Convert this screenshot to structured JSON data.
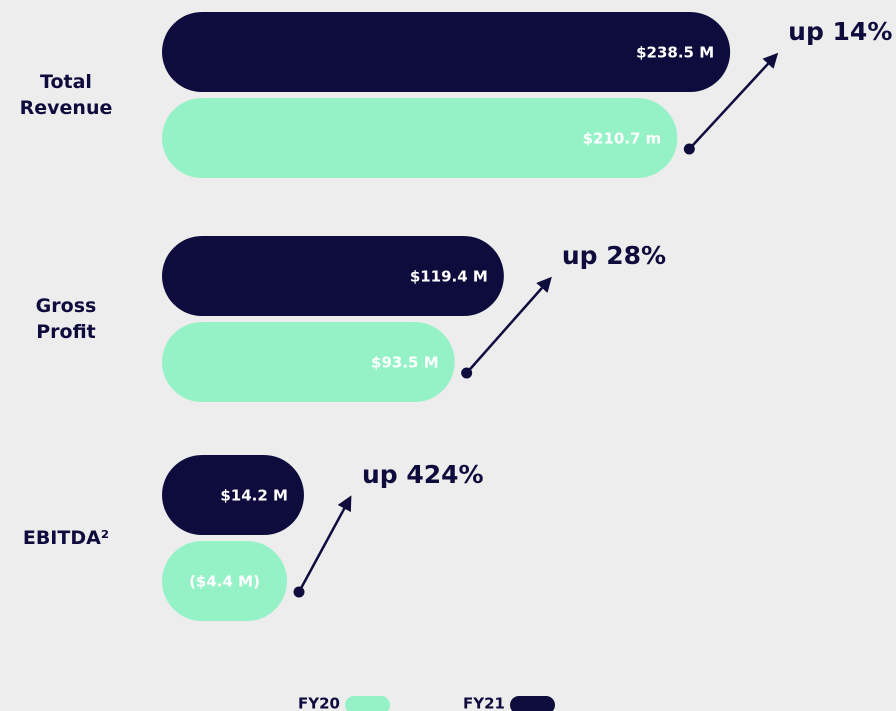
{
  "chart_data": {
    "type": "bar",
    "orientation": "horizontal",
    "categories": [
      "Total Revenue",
      "Gross Profit",
      "EBITDA²"
    ],
    "series": [
      {
        "name": "FY21",
        "color": "#0d0c3d",
        "values": [
          238.5,
          119.4,
          14.2
        ],
        "value_labels": [
          "$238.5 M",
          "$119.4 M",
          "$14.2 M"
        ]
      },
      {
        "name": "FY20",
        "color": "#95f2c6",
        "values": [
          210.7,
          93.5,
          -4.4
        ],
        "value_labels": [
          "$210.7 m",
          "$93.5 M",
          "($4.4 M)"
        ]
      }
    ],
    "annotations": [
      "up 14%",
      "up 28%",
      "up 424%"
    ],
    "legend": "bottom"
  }
}
